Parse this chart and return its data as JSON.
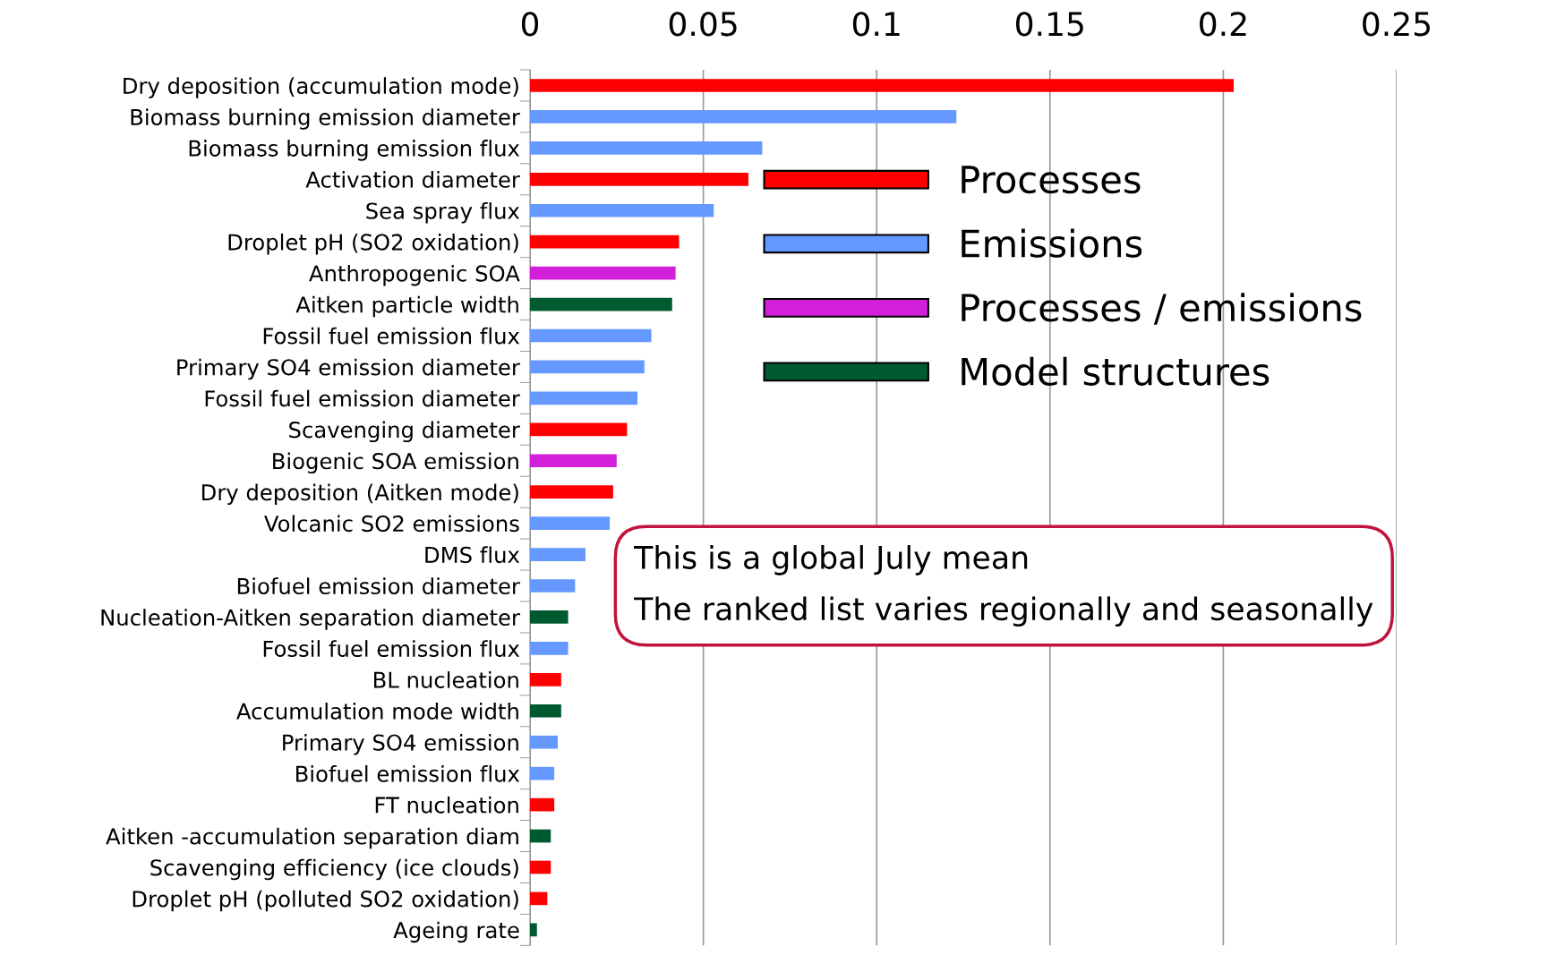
{
  "chart_data": {
    "type": "bar",
    "orientation": "horizontal",
    "categories": [
      "Dry deposition (accumulation mode)",
      "Biomass burning emission diameter",
      "Biomass burning emission flux",
      "Activation diameter",
      "Sea spray flux",
      "Droplet pH (SO2 oxidation)",
      "Anthropogenic SOA",
      "Aitken particle width",
      "Fossil fuel emission flux",
      "Primary SO4 emission diameter",
      "Fossil fuel emission diameter",
      "Scavenging diameter",
      "Biogenic SOA emission",
      "Dry deposition (Aitken mode)",
      "Volcanic SO2 emissions",
      "DMS flux",
      "Biofuel emission diameter",
      "Nucleation-Aitken separation diameter",
      "Fossil fuel emission flux",
      "BL nucleation",
      "Accumulation mode width",
      "Primary SO4 emission",
      "Biofuel emission flux",
      "FT nucleation",
      "Aitken -accumulation separation diam",
      "Scavenging efficiency (ice clouds)",
      "Droplet pH (polluted SO2 oxidation)",
      "Ageing rate"
    ],
    "series": [
      {
        "name": "Processes",
        "color": "#ff0000",
        "values": [
          0.203,
          null,
          null,
          0.063,
          null,
          0.043,
          null,
          null,
          null,
          null,
          null,
          0.028,
          null,
          0.024,
          null,
          null,
          null,
          null,
          null,
          0.009,
          null,
          null,
          null,
          0.007,
          null,
          0.006,
          0.005,
          null
        ]
      },
      {
        "name": "Emissions",
        "color": "#6699ff",
        "values": [
          null,
          0.123,
          0.067,
          null,
          0.053,
          null,
          null,
          null,
          0.035,
          0.033,
          0.031,
          null,
          null,
          null,
          0.023,
          0.016,
          0.013,
          null,
          0.011,
          null,
          null,
          0.008,
          0.007,
          null,
          null,
          null,
          null,
          null
        ]
      },
      {
        "name": "Processes / emissions",
        "color": "#d21fd8",
        "values": [
          null,
          null,
          null,
          null,
          null,
          null,
          0.042,
          null,
          null,
          null,
          null,
          null,
          0.025,
          null,
          null,
          null,
          null,
          null,
          null,
          null,
          null,
          null,
          null,
          null,
          null,
          null,
          null,
          null
        ]
      },
      {
        "name": "Model structures",
        "color": "#005a30",
        "values": [
          null,
          null,
          null,
          null,
          null,
          null,
          null,
          0.041,
          null,
          null,
          null,
          null,
          null,
          null,
          null,
          null,
          null,
          0.011,
          null,
          null,
          0.009,
          null,
          null,
          null,
          0.006,
          null,
          null,
          0.002
        ]
      }
    ],
    "xlim": [
      0,
      0.25
    ],
    "xticks": [
      0,
      0.05,
      0.1,
      0.15,
      0.2,
      0.25
    ],
    "grid": "x",
    "legend": "top right",
    "annotations": [
      "This is a global July mean",
      "The ranked list varies regionally and seasonally"
    ]
  }
}
